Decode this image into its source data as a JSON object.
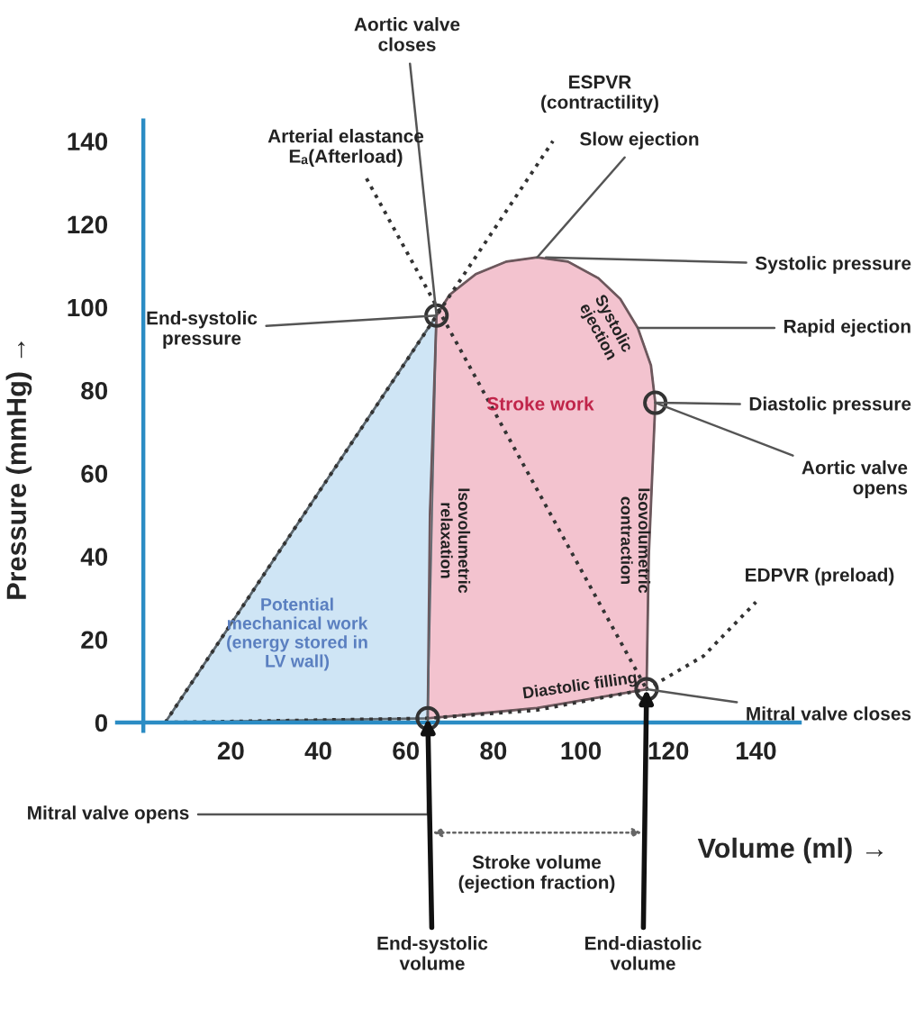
{
  "chart_data": {
    "type": "area",
    "xlabel": "Volume (ml) →",
    "ylabel": "Pressure (mmHg) →",
    "xlim": [
      -6,
      150
    ],
    "ylim": [
      -2,
      145
    ],
    "xticks": [
      20,
      40,
      60,
      80,
      100,
      120,
      140
    ],
    "yticks": [
      0,
      20,
      40,
      60,
      80,
      100,
      120,
      140
    ],
    "grid": false,
    "legend": false,
    "series": [
      {
        "color": "#cfe5f5",
        "x": [
          5,
          67,
          65
        ],
        "values": [
          0,
          98,
          1
        ]
      },
      {
        "color": "#f3c3cf",
        "x": [
          65,
          90,
          115,
          115.5,
          117,
          116,
          113,
          109,
          104,
          97,
          90,
          83,
          76,
          70,
          67,
          65.5
        ],
        "values": [
          1,
          3.5,
          8,
          40,
          77,
          86,
          95,
          102,
          107,
          111,
          112,
          111,
          108,
          103,
          98,
          50
        ]
      },
      {
        "type": "line",
        "color": "#333333",
        "line_style": "dotted",
        "marker": "none",
        "x": [
          5,
          93.6
        ],
        "values": [
          0,
          140
        ]
      },
      {
        "type": "line",
        "color": "#333333",
        "line_style": "dotted",
        "marker": "none",
        "x": [
          51,
          115
        ],
        "values": [
          131,
          8
        ]
      },
      {
        "type": "line",
        "color": "#333333",
        "line_style": "dotted",
        "marker": "none",
        "x": [
          5,
          65,
          90,
          115,
          128,
          140
        ],
        "values": [
          0,
          1,
          3,
          8,
          16,
          29
        ]
      },
      {
        "type": "scatter",
        "color": "#333333",
        "marker": "circle",
        "x": [
          65,
          67,
          115,
          117
        ],
        "values": [
          1,
          98,
          8,
          77
        ]
      }
    ],
    "annotations": [
      {
        "text": "Aortic valve\ncloses",
        "x": 67,
        "y": 98
      },
      {
        "text": "Arterial elastance\nEₐ(Afterload)",
        "x": 51,
        "y": 131
      },
      {
        "text": "ESPVR\n(contractility)",
        "x": 93.6,
        "y": 140
      },
      {
        "text": "Slow ejection",
        "x": 90,
        "y": 112
      },
      {
        "text": "Systolic pressure",
        "x": 92,
        "y": 112
      },
      {
        "text": "Rapid ejection",
        "x": 113,
        "y": 95
      },
      {
        "text": "Diastolic pressure",
        "x": 117,
        "y": 77
      },
      {
        "text": "Aortic valve\nopens",
        "x": 117,
        "y": 77
      },
      {
        "text": "EDPVR (preload)",
        "x": 140,
        "y": 29
      },
      {
        "text": "Mitral valve closes",
        "x": 115,
        "y": 8
      },
      {
        "text": "Mitral valve opens",
        "x": 65,
        "y": 1
      },
      {
        "text": "End-systolic\npressure",
        "x": 67,
        "y": 98
      },
      {
        "text": "End-systolic\nvolume",
        "x": 65,
        "y": 1
      },
      {
        "text": "End-diastolic\nvolume",
        "x": 115,
        "y": 8
      },
      "Stroke volume\n(ejection fraction)",
      "Stroke work",
      "Potential\nmechanical work\n(energy stored in\nLV wall)",
      "Isovolumetric\nrelaxation",
      "Isovolumetric\ncontraction",
      "Systolic\nejection",
      "Diastolic filling"
    ]
  }
}
